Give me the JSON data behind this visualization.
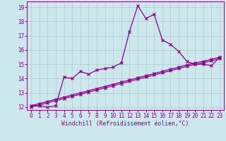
{
  "title": "",
  "xlabel": "Windchill (Refroidissement éolien,°C)",
  "x_values": [
    0,
    1,
    2,
    3,
    4,
    5,
    6,
    7,
    8,
    9,
    10,
    11,
    12,
    13,
    14,
    15,
    16,
    17,
    18,
    19,
    20,
    21,
    22,
    23
  ],
  "line1_y": [
    12.1,
    12.1,
    12.0,
    12.1,
    14.1,
    14.0,
    14.5,
    14.3,
    14.6,
    14.7,
    14.8,
    15.1,
    17.3,
    19.1,
    18.2,
    18.5,
    16.7,
    16.4,
    15.9,
    15.2,
    15.0,
    15.0,
    14.9,
    15.5
  ],
  "line2_y": [
    12.0,
    12.15,
    12.3,
    12.45,
    12.6,
    12.75,
    12.9,
    13.05,
    13.2,
    13.35,
    13.5,
    13.65,
    13.8,
    13.95,
    14.1,
    14.25,
    14.4,
    14.55,
    14.7,
    14.85,
    15.0,
    15.1,
    15.25,
    15.4
  ],
  "line3_y": [
    12.1,
    12.25,
    12.4,
    12.55,
    12.7,
    12.85,
    13.0,
    13.15,
    13.3,
    13.45,
    13.6,
    13.75,
    13.9,
    14.05,
    14.2,
    14.35,
    14.5,
    14.65,
    14.8,
    14.95,
    15.1,
    15.2,
    15.35,
    15.5
  ],
  "line_color": "#880088",
  "bg_color": "#cce8ec",
  "grid_color": "#aacccc",
  "ylim": [
    11.8,
    19.4
  ],
  "yticks": [
    12,
    13,
    14,
    15,
    16,
    17,
    18,
    19
  ],
  "xlim": [
    -0.5,
    23.5
  ],
  "xticks": [
    0,
    1,
    2,
    3,
    4,
    5,
    6,
    7,
    8,
    9,
    10,
    11,
    12,
    13,
    14,
    15,
    16,
    17,
    18,
    19,
    20,
    21,
    22,
    23
  ],
  "xlabel_fontsize": 5.8,
  "tick_fontsize": 5.5
}
